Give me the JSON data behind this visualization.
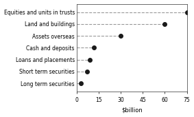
{
  "categories": [
    "Equities and units in trusts",
    "Land and buildings",
    "Assets overseas",
    "Cash and deposits",
    "Loans and placements",
    "Short term securities",
    "Long term securities"
  ],
  "values": [
    75,
    60,
    30,
    12,
    9,
    7,
    3
  ],
  "xlabel": "$billion",
  "xlim": [
    0,
    75
  ],
  "xticks": [
    0,
    15,
    30,
    45,
    60,
    75
  ],
  "marker": "o",
  "marker_color": "#1a1a1a",
  "marker_size": 4,
  "line_color": "#999999",
  "line_style": "--",
  "line_width": 0.8,
  "label_font_size": 5.5,
  "tick_font_size": 5.5,
  "xlabel_font_size": 6.0,
  "figwidth": 2.83,
  "figheight": 1.7,
  "dpi": 100
}
